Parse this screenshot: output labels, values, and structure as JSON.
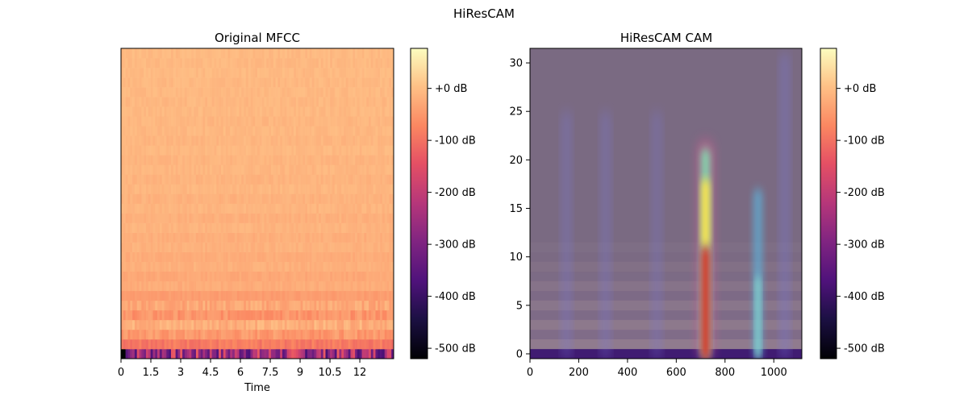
{
  "figure": {
    "title": "HiResCAM"
  },
  "chart_data": [
    {
      "type": "heatmap",
      "title": "Original MFCC",
      "xlabel": "Time",
      "ylabel": "",
      "xlim": [
        0,
        13.7
      ],
      "xticks": [
        0,
        1.5,
        3,
        4.5,
        6,
        7.5,
        9,
        10.5,
        12
      ],
      "xtick_labels": [
        "0",
        "1.5",
        "3",
        "4.5",
        "6",
        "7.5",
        "9",
        "10.5",
        "12"
      ],
      "rows": 32,
      "columns": 120,
      "colormap": "magma",
      "row_levels_db": [
        -255,
        -90,
        -50,
        -20,
        -55,
        -30,
        -45,
        -25,
        -30,
        -20,
        -25,
        -18,
        -22,
        -15,
        -20,
        -14,
        -18,
        -12,
        -16,
        -12,
        -14,
        -10,
        -13,
        -10,
        -12,
        -9,
        -11,
        -9,
        -10,
        -8,
        -9,
        -8
      ],
      "colorbar": {
        "ticks": [
          0,
          -100,
          -200,
          -300,
          -400,
          -500
        ],
        "tick_labels": [
          "+0 dB",
          "-100 dB",
          "-200 dB",
          "-300 dB",
          "-400 dB",
          "-500 dB"
        ],
        "range": [
          -520,
          77
        ]
      }
    },
    {
      "type": "heatmap",
      "title": "HiResCAM CAM",
      "xlabel": "",
      "ylabel": "",
      "xlim": [
        0,
        1115
      ],
      "ylim": [
        -0.5,
        31.5
      ],
      "xticks": [
        0,
        200,
        400,
        600,
        800,
        1000
      ],
      "xtick_labels": [
        "0",
        "200",
        "400",
        "600",
        "800",
        "1000"
      ],
      "yticks": [
        0,
        5,
        10,
        15,
        20,
        25,
        30
      ],
      "ytick_labels": [
        "0",
        "5",
        "10",
        "15",
        "20",
        "25",
        "30"
      ],
      "colormap": "magma",
      "overlay": "CAM heatmap over MFCC",
      "cam_peaks": [
        {
          "x": 720,
          "y_top": 22,
          "intensity": 1.0
        },
        {
          "x": 935,
          "y_top": 17,
          "intensity": 0.55
        },
        {
          "x": 150,
          "y_top": 25,
          "intensity": 0.25
        },
        {
          "x": 310,
          "y_top": 25,
          "intensity": 0.25
        },
        {
          "x": 520,
          "y_top": 25,
          "intensity": 0.22
        },
        {
          "x": 1045,
          "y_top": 31,
          "intensity": 0.3
        }
      ],
      "colorbar": {
        "ticks": [
          0,
          -100,
          -200,
          -300,
          -400,
          -500
        ],
        "tick_labels": [
          "+0 dB",
          "-100 dB",
          "-200 dB",
          "-300 dB",
          "-400 dB",
          "-500 dB"
        ],
        "range": [
          -520,
          77
        ]
      }
    }
  ]
}
